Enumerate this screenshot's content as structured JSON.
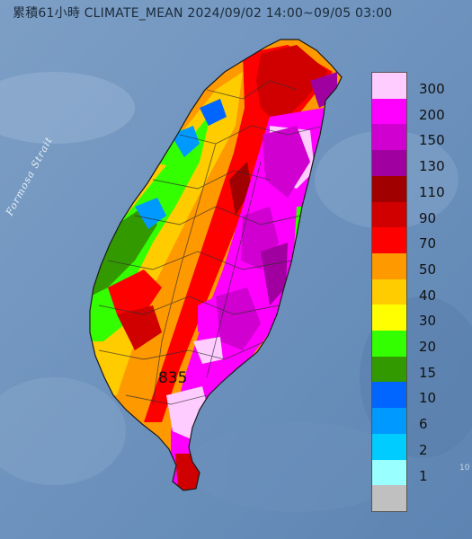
{
  "title": "累積61小時 CLIMATE_MEAN 2024/09/02 14:00~09/05 03:00",
  "strait_label": "Formosa Strait",
  "max_value_label": "835",
  "stray_label": "10",
  "legend": {
    "items": [
      {
        "label": "300",
        "color": "#ffccff"
      },
      {
        "label": "200",
        "color": "#ff00ff"
      },
      {
        "label": "150",
        "color": "#d000d0"
      },
      {
        "label": "130",
        "color": "#a000a0"
      },
      {
        "label": "110",
        "color": "#a00000"
      },
      {
        "label": "90",
        "color": "#d00000"
      },
      {
        "label": "70",
        "color": "#ff0000"
      },
      {
        "label": "50",
        "color": "#ff9900"
      },
      {
        "label": "40",
        "color": "#ffcc00"
      },
      {
        "label": "30",
        "color": "#ffff00"
      },
      {
        "label": "20",
        "color": "#33ff00"
      },
      {
        "label": "15",
        "color": "#339900"
      },
      {
        "label": "10",
        "color": "#0066ff"
      },
      {
        "label": "6",
        "color": "#0099ff"
      },
      {
        "label": "2",
        "color": "#00ccff"
      },
      {
        "label": "1",
        "color": "#99ffff"
      },
      {
        "label": "",
        "color": "#c0c0c0"
      }
    ]
  }
}
